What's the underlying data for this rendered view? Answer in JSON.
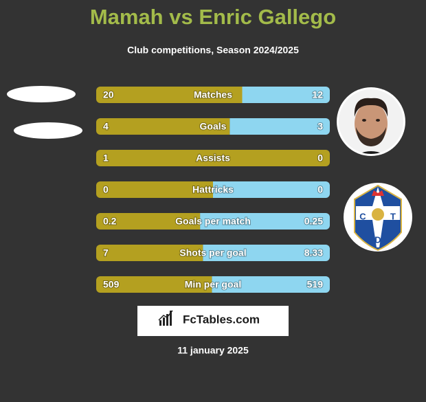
{
  "title": "Mamah vs Enric Gallego",
  "subtitle": "Club competitions, Season 2024/2025",
  "rows": [
    {
      "label": "Matches",
      "left": 20,
      "right": 12
    },
    {
      "label": "Goals",
      "left": 4,
      "right": 3
    },
    {
      "label": "Assists",
      "left": 1,
      "right": 0
    },
    {
      "label": "Hattricks",
      "left": 0,
      "right": 0
    },
    {
      "label": "Goals per match",
      "left": 0.2,
      "right": 0.25
    },
    {
      "label": "Shots per goal",
      "left": 7,
      "right": 8.33
    },
    {
      "label": "Min per goal",
      "left": 509,
      "right": 519
    }
  ],
  "brand": "FcTables.com",
  "date": "11 january 2025"
}
